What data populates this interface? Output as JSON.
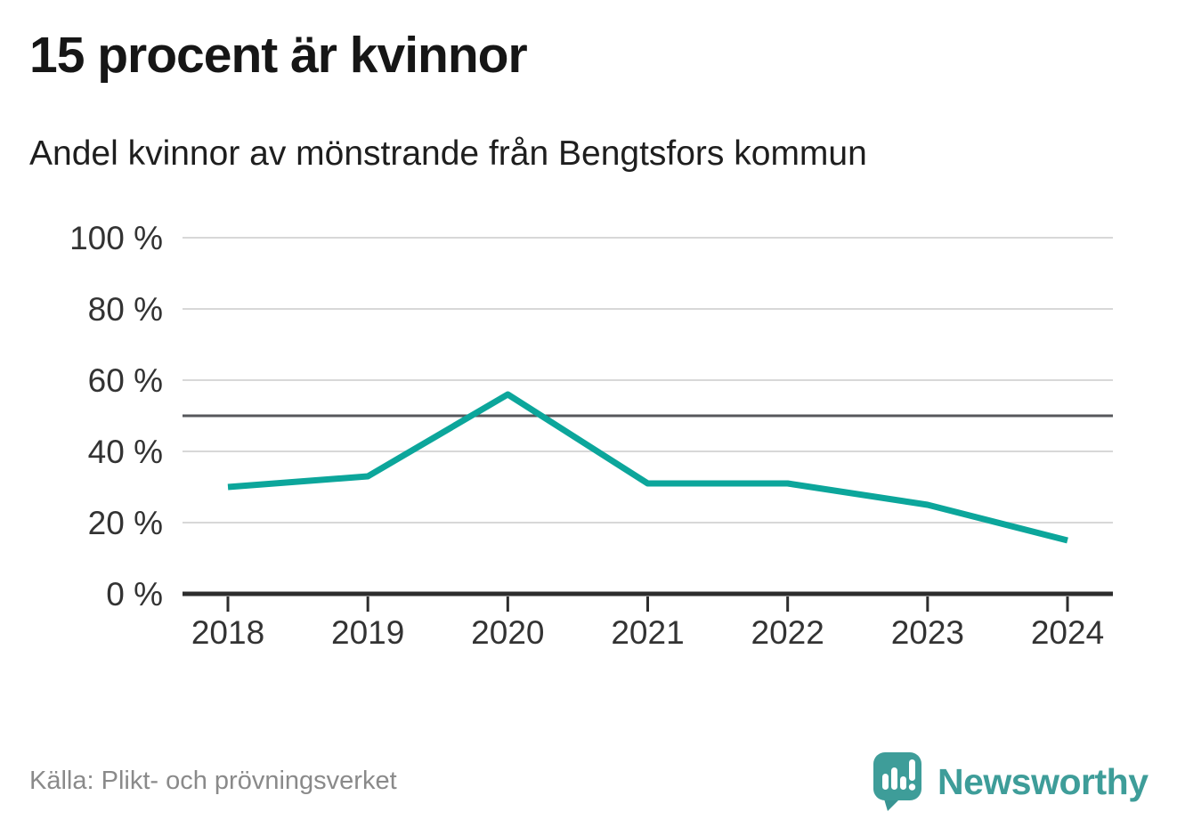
{
  "chart_data": {
    "type": "line",
    "title": "15 procent är kvinnor",
    "subtitle": "Andel kvinnor av mönstrande från Bengtsfors kommun",
    "categories": [
      "2018",
      "2019",
      "2020",
      "2021",
      "2022",
      "2023",
      "2024"
    ],
    "series": [
      {
        "name": "Andel kvinnor av mönstrande",
        "values": [
          30,
          33,
          56,
          31,
          31,
          25,
          15
        ],
        "color": "#0ca69b"
      }
    ],
    "unit": "%",
    "ylim": [
      0,
      100
    ],
    "yticks": [
      0,
      20,
      40,
      60,
      80,
      100
    ],
    "ytick_labels": [
      "0 %",
      "20 %",
      "40 %",
      "60 %",
      "80 %",
      "100 %"
    ],
    "reference_line": {
      "value": 50,
      "color": "#57585c"
    },
    "grid": true,
    "legend": "none",
    "colors": {
      "grid": "#d8d8d8",
      "axis": "#2d2d2d",
      "tick_text": "#333333"
    }
  },
  "footer": {
    "source": "Källa: Plikt- och prövningsverket",
    "brand": "Newsworthy",
    "brand_color": "#3e9d99"
  }
}
